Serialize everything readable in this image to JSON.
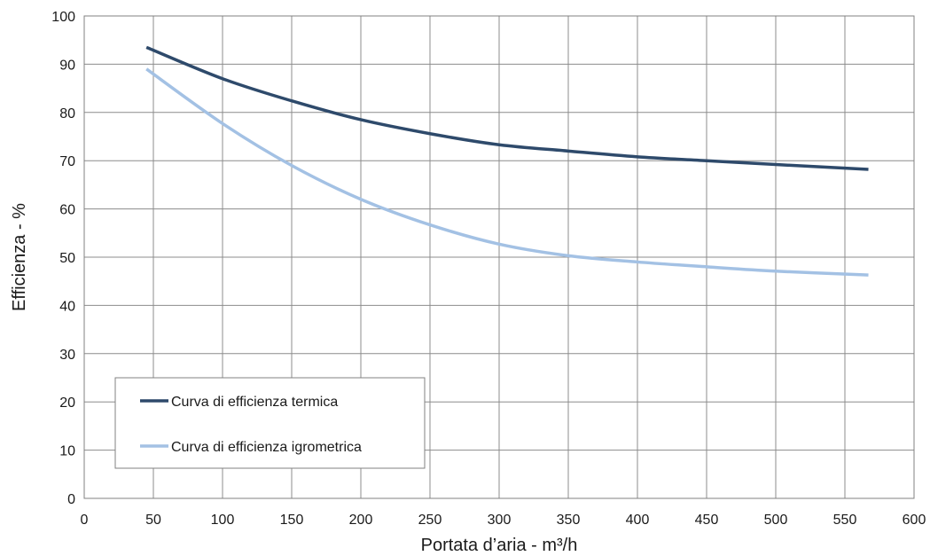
{
  "chart_data": {
    "type": "line",
    "title": "",
    "xlabel": "Portata d’aria - m³/h",
    "ylabel": "Efficienza - %",
    "xlim": [
      0,
      600
    ],
    "ylim": [
      0,
      100
    ],
    "xticks": [
      0,
      50,
      100,
      150,
      200,
      250,
      300,
      350,
      400,
      450,
      500,
      550,
      600
    ],
    "yticks": [
      0,
      10,
      20,
      30,
      40,
      50,
      60,
      70,
      80,
      90,
      100
    ],
    "grid": true,
    "legend_position": "bottom-left",
    "series": [
      {
        "name": "Curva di efficienza termica",
        "color": "#2e4a6b",
        "x": [
          45,
          100,
          150,
          200,
          250,
          300,
          350,
          400,
          450,
          500,
          567
        ],
        "y": [
          93.5,
          87,
          82.4,
          78.5,
          75.6,
          73.3,
          72,
          70.8,
          70,
          69.2,
          68.2
        ]
      },
      {
        "name": "Curva di efficienza igrometrica",
        "color": "#a3c1e4",
        "x": [
          45,
          100,
          150,
          200,
          250,
          300,
          350,
          400,
          450,
          500,
          567
        ],
        "y": [
          89,
          77.7,
          69,
          62,
          56.7,
          52.7,
          50.3,
          49,
          48,
          47.1,
          46.3
        ]
      }
    ]
  }
}
